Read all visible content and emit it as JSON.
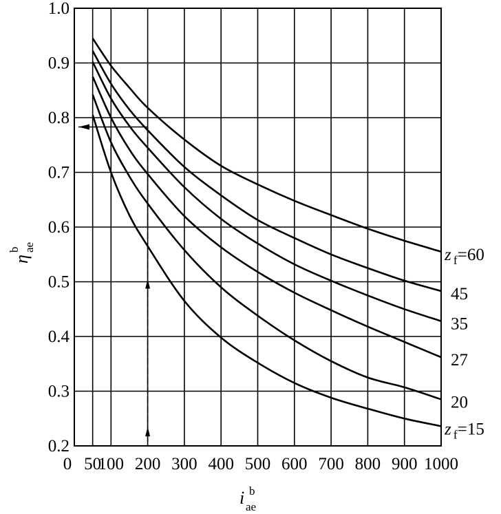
{
  "chart_data": {
    "type": "line",
    "xlabel": {
      "main": "i",
      "sup": "b",
      "sub": "ae"
    },
    "ylabel": {
      "main": "η",
      "sup": "b",
      "sub": "ae"
    },
    "xlim": [
      0,
      1000
    ],
    "ylim": [
      0.2,
      1.0
    ],
    "grid": true,
    "x_ticks": [
      {
        "value": 0,
        "label": "0"
      },
      {
        "value": 50,
        "label": "50"
      },
      {
        "value": 100,
        "label": "100"
      },
      {
        "value": 200,
        "label": "200"
      },
      {
        "value": 300,
        "label": "300"
      },
      {
        "value": 400,
        "label": "400"
      },
      {
        "value": 500,
        "label": "500"
      },
      {
        "value": 600,
        "label": "600"
      },
      {
        "value": 700,
        "label": "700"
      },
      {
        "value": 800,
        "label": "800"
      },
      {
        "value": 900,
        "label": "900"
      },
      {
        "value": 1000,
        "label": "1000"
      }
    ],
    "y_ticks": [
      {
        "value": 0.2,
        "label": "0.2"
      },
      {
        "value": 0.3,
        "label": "0.3"
      },
      {
        "value": 0.4,
        "label": "0.4"
      },
      {
        "value": 0.5,
        "label": "0.5"
      },
      {
        "value": 0.6,
        "label": "0.6"
      },
      {
        "value": 0.7,
        "label": "0.7"
      },
      {
        "value": 0.8,
        "label": "0.8"
      },
      {
        "value": 0.9,
        "label": "0.9"
      },
      {
        "value": 1.0,
        "label": "1.0"
      }
    ],
    "series": [
      {
        "label": "z_f=60",
        "label_parts": {
          "var": "z",
          "sub": "f",
          "eq": "=60"
        },
        "x": [
          50,
          100,
          150,
          200,
          300,
          400,
          500,
          600,
          700,
          800,
          900,
          1000
        ],
        "y": [
          0.945,
          0.895,
          0.855,
          0.818,
          0.76,
          0.712,
          0.678,
          0.648,
          0.622,
          0.597,
          0.575,
          0.555
        ]
      },
      {
        "label": "45",
        "x": [
          50,
          100,
          150,
          200,
          300,
          400,
          500,
          600,
          700,
          800,
          900,
          1000
        ],
        "y": [
          0.922,
          0.862,
          0.815,
          0.777,
          0.71,
          0.658,
          0.613,
          0.58,
          0.55,
          0.525,
          0.502,
          0.483
        ]
      },
      {
        "label": "35",
        "x": [
          50,
          100,
          150,
          200,
          300,
          400,
          500,
          600,
          700,
          800,
          900,
          1000
        ],
        "y": [
          0.902,
          0.835,
          0.785,
          0.745,
          0.673,
          0.615,
          0.57,
          0.532,
          0.502,
          0.475,
          0.45,
          0.428
        ]
      },
      {
        "label": "27",
        "x": [
          50,
          100,
          150,
          200,
          300,
          400,
          500,
          600,
          700,
          800,
          900,
          1000
        ],
        "y": [
          0.875,
          0.8,
          0.742,
          0.697,
          0.62,
          0.563,
          0.518,
          0.48,
          0.448,
          0.418,
          0.39,
          0.362
        ]
      },
      {
        "label": "20",
        "x": [
          50,
          100,
          150,
          200,
          300,
          400,
          500,
          600,
          700,
          800,
          900,
          1000
        ],
        "y": [
          0.842,
          0.755,
          0.693,
          0.643,
          0.558,
          0.49,
          0.438,
          0.393,
          0.355,
          0.325,
          0.307,
          0.285
        ]
      },
      {
        "label": "z_f=15",
        "label_parts": {
          "var": "z",
          "sub": "f",
          "eq": "=15"
        },
        "x": [
          50,
          100,
          150,
          200,
          300,
          400,
          500,
          600,
          700,
          800,
          900,
          1000
        ],
        "y": [
          0.805,
          0.7,
          0.622,
          0.565,
          0.465,
          0.398,
          0.352,
          0.315,
          0.288,
          0.268,
          0.25,
          0.236
        ]
      }
    ],
    "annotations": [
      {
        "type": "dashed-vertical",
        "x": 200,
        "y_from": 0.2,
        "y_to": 0.783,
        "arrows": "up"
      },
      {
        "type": "horizontal-arrow",
        "y": 0.783,
        "x_from": 200,
        "x_to": 0,
        "arrows": "left"
      }
    ]
  }
}
